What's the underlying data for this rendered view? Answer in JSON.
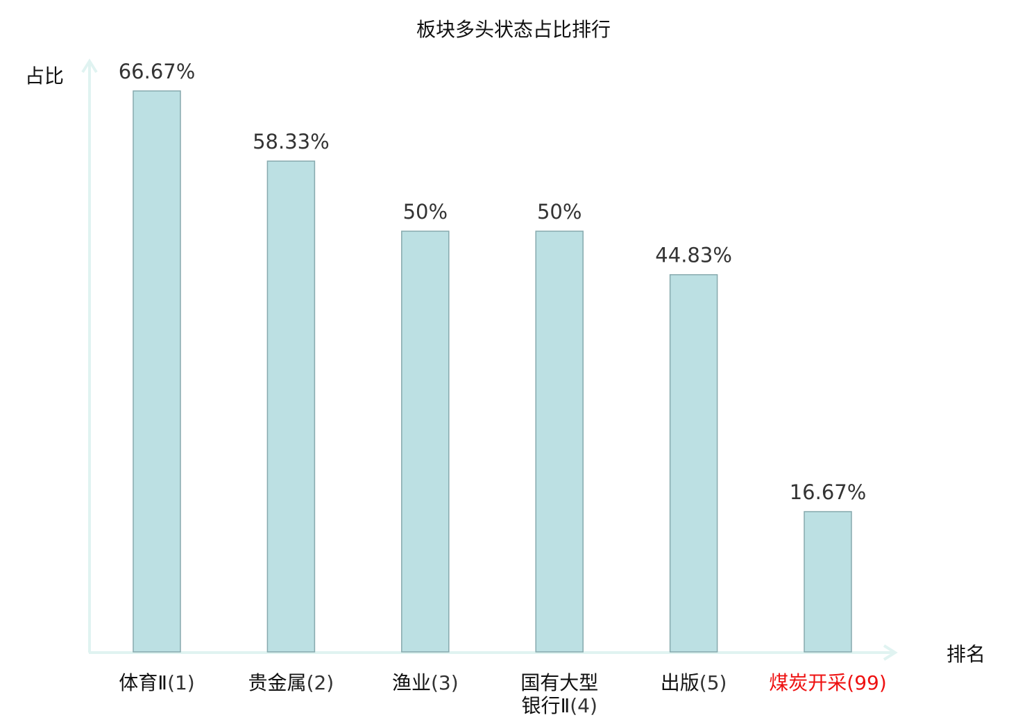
{
  "chart_data": {
    "type": "bar",
    "title": "板块多头状态占比排行",
    "ylabel": "占比",
    "xlabel": "排名",
    "categories": [
      {
        "name": "体育Ⅱ",
        "rank": "(1)",
        "highlight": false
      },
      {
        "name": "贵金属",
        "rank": "(2)",
        "highlight": false
      },
      {
        "name": "渔业",
        "rank": "(3)",
        "highlight": false
      },
      {
        "name": "国有大型",
        "name2": "银行Ⅱ",
        "rank": "(4)",
        "highlight": false
      },
      {
        "name": "出版",
        "rank": "(5)",
        "highlight": false
      },
      {
        "name": "煤炭开采",
        "rank": "(99)",
        "highlight": true
      }
    ],
    "values": [
      66.67,
      58.33,
      50,
      50,
      44.83,
      16.67
    ],
    "value_labels": [
      "66.67%",
      "58.33%",
      "50%",
      "50%",
      "44.83%",
      "16.67%"
    ],
    "ylim": [
      0,
      66.67
    ],
    "grid": false,
    "colors": {
      "bar_fill": "#bce0e3",
      "bar_stroke": "#86a9ad",
      "axis": "#e0f3f1",
      "highlight_text": "#ee1111"
    }
  }
}
